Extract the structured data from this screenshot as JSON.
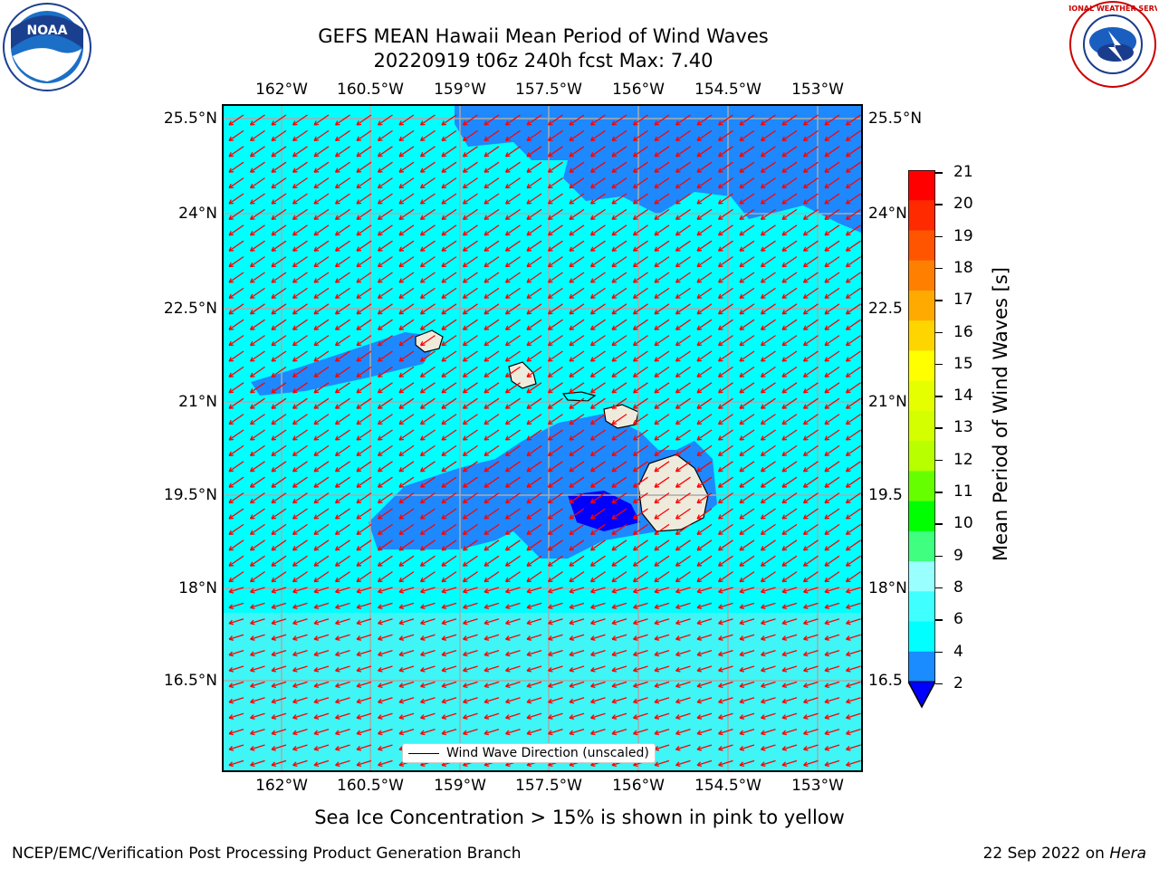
{
  "header": {
    "title_line1": "GEFS MEAN Hawaii Mean Period of Wind Waves",
    "title_line2": "20220919 t06z 240h fcst   Max: 7.40",
    "left_logo": "NOAA",
    "right_logo": "NATIONAL WEATHER SERVICE"
  },
  "map": {
    "lon_ticks": [
      "162°W",
      "160.5°W",
      "159°W",
      "157.5°W",
      "156°W",
      "154.5°W",
      "153°W"
    ],
    "lat_ticks": [
      "25.5°N",
      "24°N",
      "22.5°N",
      "21°N",
      "19.5°N",
      "18°N",
      "16.5°N"
    ],
    "lat_ticks_right": [
      "25.5°N",
      "24°N",
      "22.5",
      "21°N",
      "19.5",
      "18°N",
      "16.5"
    ],
    "legend_label": "Wind Wave Direction (unscaled)",
    "arrow_color": "#ff0000",
    "land_color": "#efebdc",
    "grid_color": "#aaaaaa"
  },
  "colorbar": {
    "label": "Mean Period of Wind Waves [s]",
    "ticks": [
      "21",
      "20",
      "19",
      "18",
      "17",
      "16",
      "15",
      "14",
      "13",
      "12",
      "11",
      "10",
      "9",
      "8",
      "6",
      "4",
      "2"
    ],
    "colors_top_to_bottom": [
      "#ff0000",
      "#ff2a00",
      "#ff5500",
      "#ff8000",
      "#ffaa00",
      "#ffd500",
      "#ffff00",
      "#e6ff00",
      "#d4ff00",
      "#b8ff00",
      "#66ff00",
      "#00ff00",
      "#40ff80",
      "#99ffff",
      "#40ffff",
      "#00ffff",
      "#1a8cff"
    ],
    "under_color": "#0000ff"
  },
  "caption": "Sea Ice Concentration > 15% is shown in pink to yellow",
  "footer": {
    "left": "NCEP/EMC/Verification Post Processing Product Generation Branch",
    "right_prefix": "22 Sep 2022 on ",
    "right_host": "Hera"
  }
}
